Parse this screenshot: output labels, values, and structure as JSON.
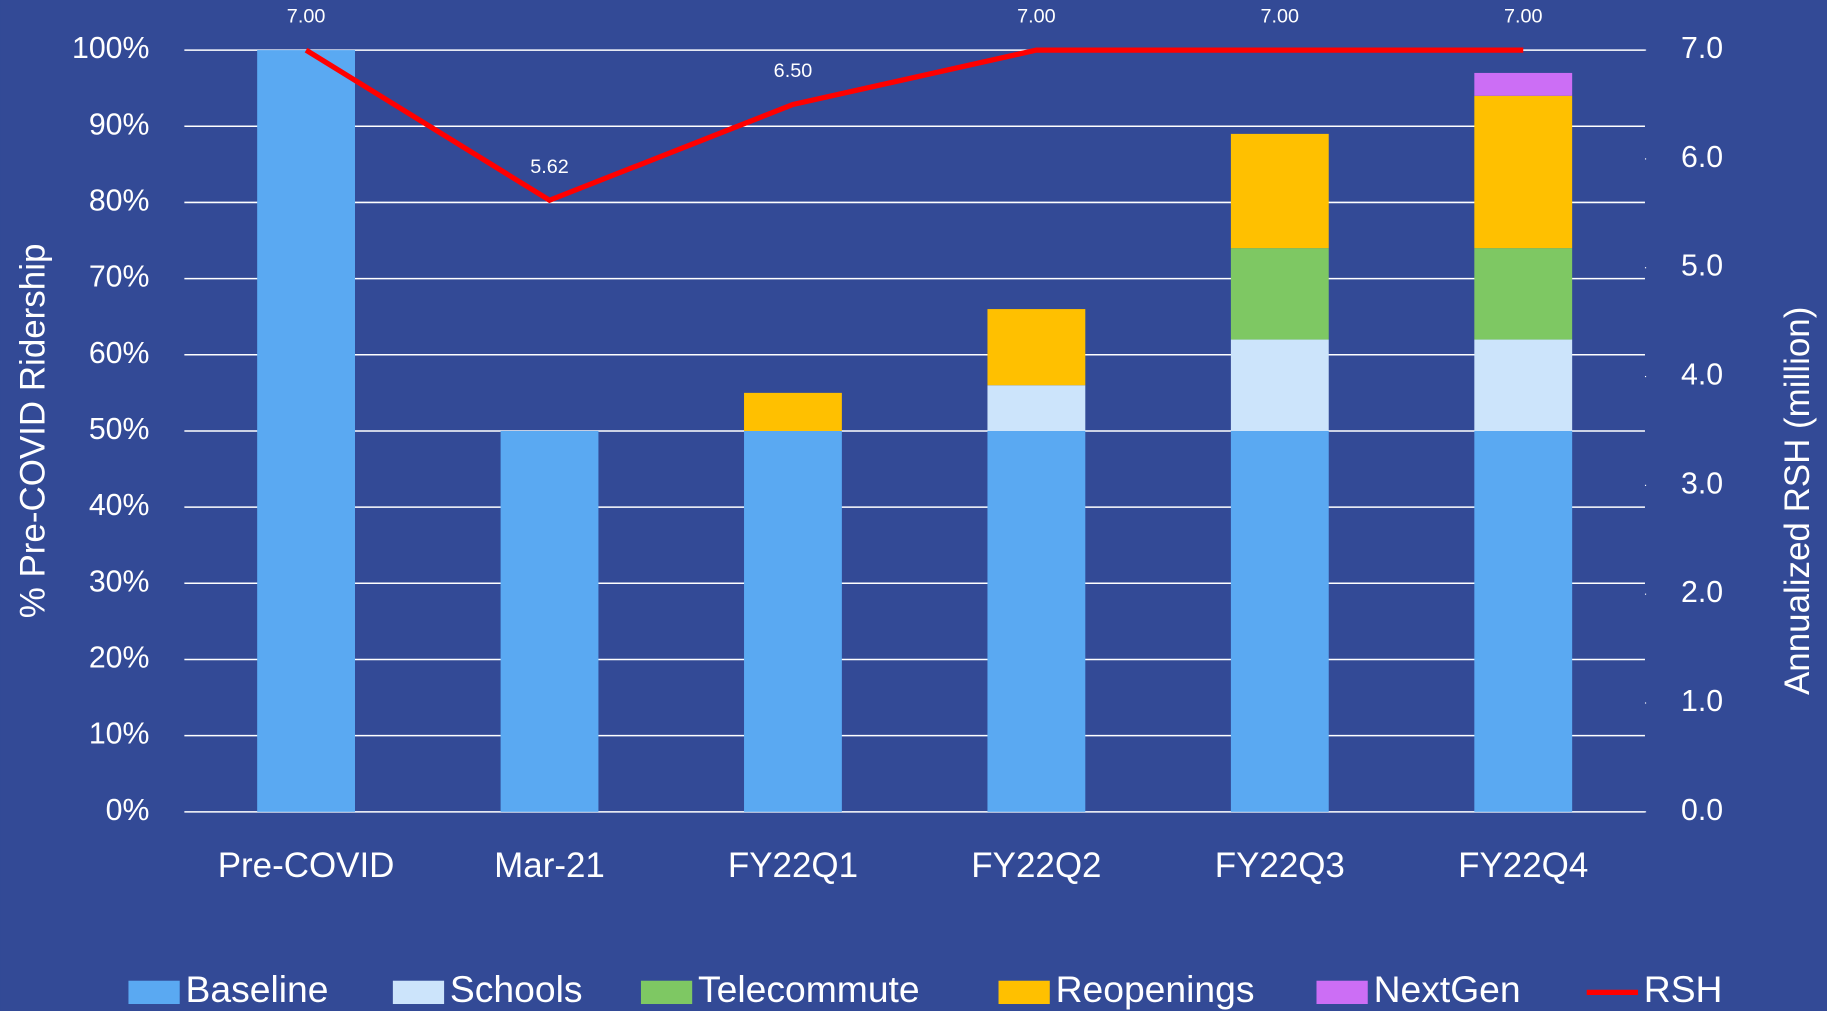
{
  "chart_data": {
    "type": "bar",
    "stacked": true,
    "y_label": "% Pre-COVID Ridership",
    "y2_label": "Annualized RSH (million)",
    "categories": [
      "Pre-COVID",
      "Mar-21",
      "FY22Q1",
      "FY22Q2",
      "FY22Q3",
      "FY22Q4"
    ],
    "series": [
      {
        "name": "Baseline",
        "color": "#5aa9f2",
        "values": [
          100,
          50,
          50,
          50,
          50,
          50
        ]
      },
      {
        "name": "Schools",
        "color": "#cce4fb",
        "values": [
          0,
          0,
          0,
          6,
          12,
          12
        ]
      },
      {
        "name": "Telecommute",
        "color": "#7ec863",
        "values": [
          0,
          0,
          0,
          0,
          12,
          12
        ]
      },
      {
        "name": "Reopenings",
        "color": "#ffc000",
        "values": [
          0,
          0,
          5,
          10,
          15,
          20
        ]
      },
      {
        "name": "NextGen",
        "color": "#cc6ef5",
        "values": [
          0,
          0,
          0,
          0,
          0,
          3
        ]
      },
      {
        "name": "RSH",
        "type": "line",
        "axis": "y2",
        "color": "#ff0000",
        "values": [
          7.0,
          5.62,
          6.5,
          7.0,
          7.0,
          7.0
        ],
        "value_labels": [
          "7.00",
          "5.62",
          "6.50",
          "7.00",
          "7.00",
          "7.00"
        ]
      }
    ],
    "ylim": [
      0,
      100
    ],
    "yticks": [
      {
        "value": 0,
        "label": "0%"
      },
      {
        "value": 10,
        "label": "10%"
      },
      {
        "value": 20,
        "label": "20%"
      },
      {
        "value": 30,
        "label": "30%"
      },
      {
        "value": 40,
        "label": "40%"
      },
      {
        "value": 50,
        "label": "50%"
      },
      {
        "value": 60,
        "label": "60%"
      },
      {
        "value": 70,
        "label": "70%"
      },
      {
        "value": 80,
        "label": "80%"
      },
      {
        "value": 90,
        "label": "90%"
      },
      {
        "value": 100,
        "label": "100%"
      }
    ],
    "y2lim": [
      0,
      7
    ],
    "y2ticks": [
      {
        "value": 0,
        "label": "0.0"
      },
      {
        "value": 1,
        "label": "1.0"
      },
      {
        "value": 2,
        "label": "2.0"
      },
      {
        "value": 3,
        "label": "3.0"
      },
      {
        "value": 4,
        "label": "4.0"
      },
      {
        "value": 5,
        "label": "5.0"
      },
      {
        "value": 6,
        "label": "6.0"
      },
      {
        "value": 7,
        "label": "7.0"
      }
    ],
    "grid": true,
    "legend": "bottom"
  }
}
